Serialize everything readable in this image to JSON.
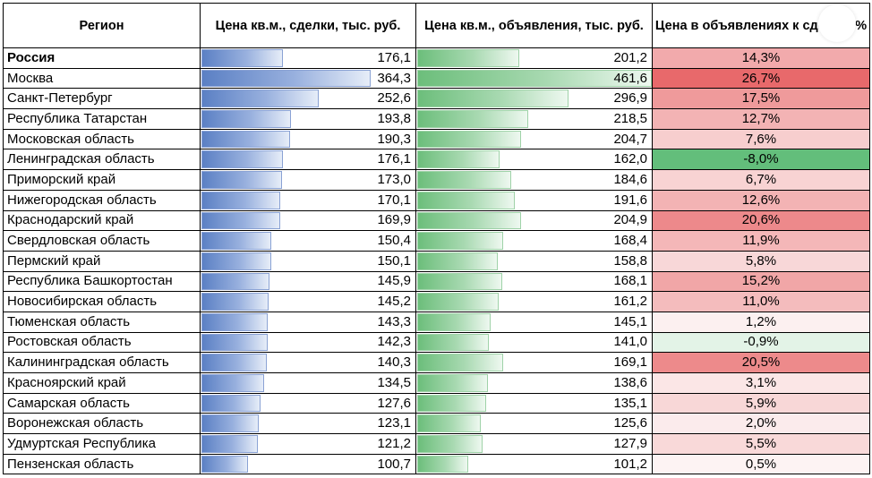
{
  "chart_data": {
    "type": "table",
    "headers": {
      "region": "Регион",
      "deal": "Цена кв.м., сделки, тыс. руб.",
      "ad": "Цена кв.м., объявления, тыс. руб.",
      "diff": "Цена в объявлениях к сделки, %"
    },
    "scale_max": 461.6,
    "diff_range": [
      -8.0,
      26.7
    ],
    "colors": {
      "deal_bar": "#5b80c4",
      "ad_bar": "#6cbe7b",
      "diff_positive": "#e8696b",
      "diff_negative": "#63be7b"
    },
    "rows": [
      {
        "region": "Россия",
        "deal": 176.1,
        "deal_text": "176,1",
        "ad": 201.2,
        "ad_text": "201,2",
        "diff": 14.3,
        "diff_text": "14,3%",
        "total": true
      },
      {
        "region": "Москва",
        "deal": 364.3,
        "deal_text": "364,3",
        "ad": 461.6,
        "ad_text": "461,6",
        "diff": 26.7,
        "diff_text": "26,7%"
      },
      {
        "region": "Санкт-Петербург",
        "deal": 252.6,
        "deal_text": "252,6",
        "ad": 296.9,
        "ad_text": "296,9",
        "diff": 17.5,
        "diff_text": "17,5%"
      },
      {
        "region": "Республика Татарстан",
        "deal": 193.8,
        "deal_text": "193,8",
        "ad": 218.5,
        "ad_text": "218,5",
        "diff": 12.7,
        "diff_text": "12,7%"
      },
      {
        "region": "Московская область",
        "deal": 190.3,
        "deal_text": "190,3",
        "ad": 204.7,
        "ad_text": "204,7",
        "diff": 7.6,
        "diff_text": "7,6%"
      },
      {
        "region": "Ленинградская область",
        "deal": 176.1,
        "deal_text": "176,1",
        "ad": 162.0,
        "ad_text": "162,0",
        "diff": -8.0,
        "diff_text": "-8,0%"
      },
      {
        "region": "Приморский край",
        "deal": 173.0,
        "deal_text": "173,0",
        "ad": 184.6,
        "ad_text": "184,6",
        "diff": 6.7,
        "diff_text": "6,7%"
      },
      {
        "region": "Нижегородская область",
        "deal": 170.1,
        "deal_text": "170,1",
        "ad": 191.6,
        "ad_text": "191,6",
        "diff": 12.6,
        "diff_text": "12,6%"
      },
      {
        "region": "Краснодарский край",
        "deal": 169.9,
        "deal_text": "169,9",
        "ad": 204.9,
        "ad_text": "204,9",
        "diff": 20.6,
        "diff_text": "20,6%"
      },
      {
        "region": "Свердловская область",
        "deal": 150.4,
        "deal_text": "150,4",
        "ad": 168.4,
        "ad_text": "168,4",
        "diff": 11.9,
        "diff_text": "11,9%"
      },
      {
        "region": "Пермский край",
        "deal": 150.1,
        "deal_text": "150,1",
        "ad": 158.8,
        "ad_text": "158,8",
        "diff": 5.8,
        "diff_text": "5,8%"
      },
      {
        "region": "Республика Башкортостан",
        "deal": 145.9,
        "deal_text": "145,9",
        "ad": 168.1,
        "ad_text": "168,1",
        "diff": 15.2,
        "diff_text": "15,2%"
      },
      {
        "region": "Новосибирская область",
        "deal": 145.2,
        "deal_text": "145,2",
        "ad": 161.2,
        "ad_text": "161,2",
        "diff": 11.0,
        "diff_text": "11,0%"
      },
      {
        "region": "Тюменская область",
        "deal": 143.3,
        "deal_text": "143,3",
        "ad": 145.1,
        "ad_text": "145,1",
        "diff": 1.2,
        "diff_text": "1,2%"
      },
      {
        "region": "Ростовская область",
        "deal": 142.3,
        "deal_text": "142,3",
        "ad": 141.0,
        "ad_text": "141,0",
        "diff": -0.9,
        "diff_text": "-0,9%"
      },
      {
        "region": "Калининградская область",
        "deal": 140.3,
        "deal_text": "140,3",
        "ad": 169.1,
        "ad_text": "169,1",
        "diff": 20.5,
        "diff_text": "20,5%"
      },
      {
        "region": "Красноярский край",
        "deal": 134.5,
        "deal_text": "134,5",
        "ad": 138.6,
        "ad_text": "138,6",
        "diff": 3.1,
        "diff_text": "3,1%"
      },
      {
        "region": "Самарская область",
        "deal": 127.6,
        "deal_text": "127,6",
        "ad": 135.1,
        "ad_text": "135,1",
        "diff": 5.9,
        "diff_text": "5,9%"
      },
      {
        "region": "Воронежская область",
        "deal": 123.1,
        "deal_text": "123,1",
        "ad": 125.6,
        "ad_text": "125,6",
        "diff": 2.0,
        "diff_text": "2,0%"
      },
      {
        "region": "Удмуртская Республика",
        "deal": 121.2,
        "deal_text": "121,2",
        "ad": 127.9,
        "ad_text": "127,9",
        "diff": 5.5,
        "diff_text": "5,5%"
      },
      {
        "region": "Пензенская область",
        "deal": 100.7,
        "deal_text": "100,7",
        "ad": 101.2,
        "ad_text": "101,2",
        "diff": 0.5,
        "diff_text": "0,5%"
      }
    ]
  }
}
